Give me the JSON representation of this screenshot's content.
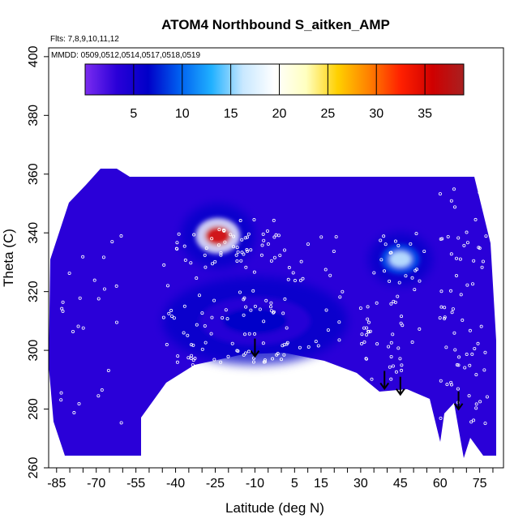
{
  "chart_data": {
    "type": "heatmap",
    "title": "ATOM4 Northbound S_aitken_AMP",
    "annotation_flights": "Flts: 7,8,9,10,11,12",
    "annotation_dates": "MMDD: 0509,0512,0514,0517,0518,0519",
    "xlabel": "Latitude (deg N)",
    "ylabel": "Theta (C)",
    "xlim": [
      -88,
      84
    ],
    "ylim": [
      260,
      403
    ],
    "x_ticks": [
      -85,
      -70,
      -55,
      -40,
      -25,
      -10,
      5,
      15,
      30,
      45,
      60,
      75
    ],
    "y_ticks": [
      260,
      280,
      300,
      320,
      340,
      360,
      380,
      400
    ],
    "colorbar": {
      "range": [
        0,
        39
      ],
      "ticks": [
        5,
        10,
        15,
        20,
        25,
        30,
        35
      ],
      "colors": [
        "#7b2cf0",
        "#2a00d8",
        "#0000c8",
        "#0060f0",
        "#20b0ff",
        "#c8e8ff",
        "#ffffff",
        "#ffffc0",
        "#ffd000",
        "#ff8000",
        "#ff2000",
        "#d00000",
        "#a82020"
      ]
    },
    "background_level": 2,
    "features": [
      {
        "kind": "high-value band",
        "lat_range": [
          -38,
          -10
        ],
        "theta_range": [
          328,
          350
        ],
        "peak_value": 35
      },
      {
        "kind": "enhanced region",
        "lat_range": [
          33,
          57
        ],
        "theta_range": [
          322,
          340
        ],
        "peak_value": 16
      },
      {
        "kind": "enhanced region",
        "lat_range": [
          -45,
          25
        ],
        "theta_range": [
          295,
          325
        ],
        "peak_value": 7
      }
    ],
    "arrows_lat": [
      -10,
      39,
      45,
      67
    ]
  }
}
